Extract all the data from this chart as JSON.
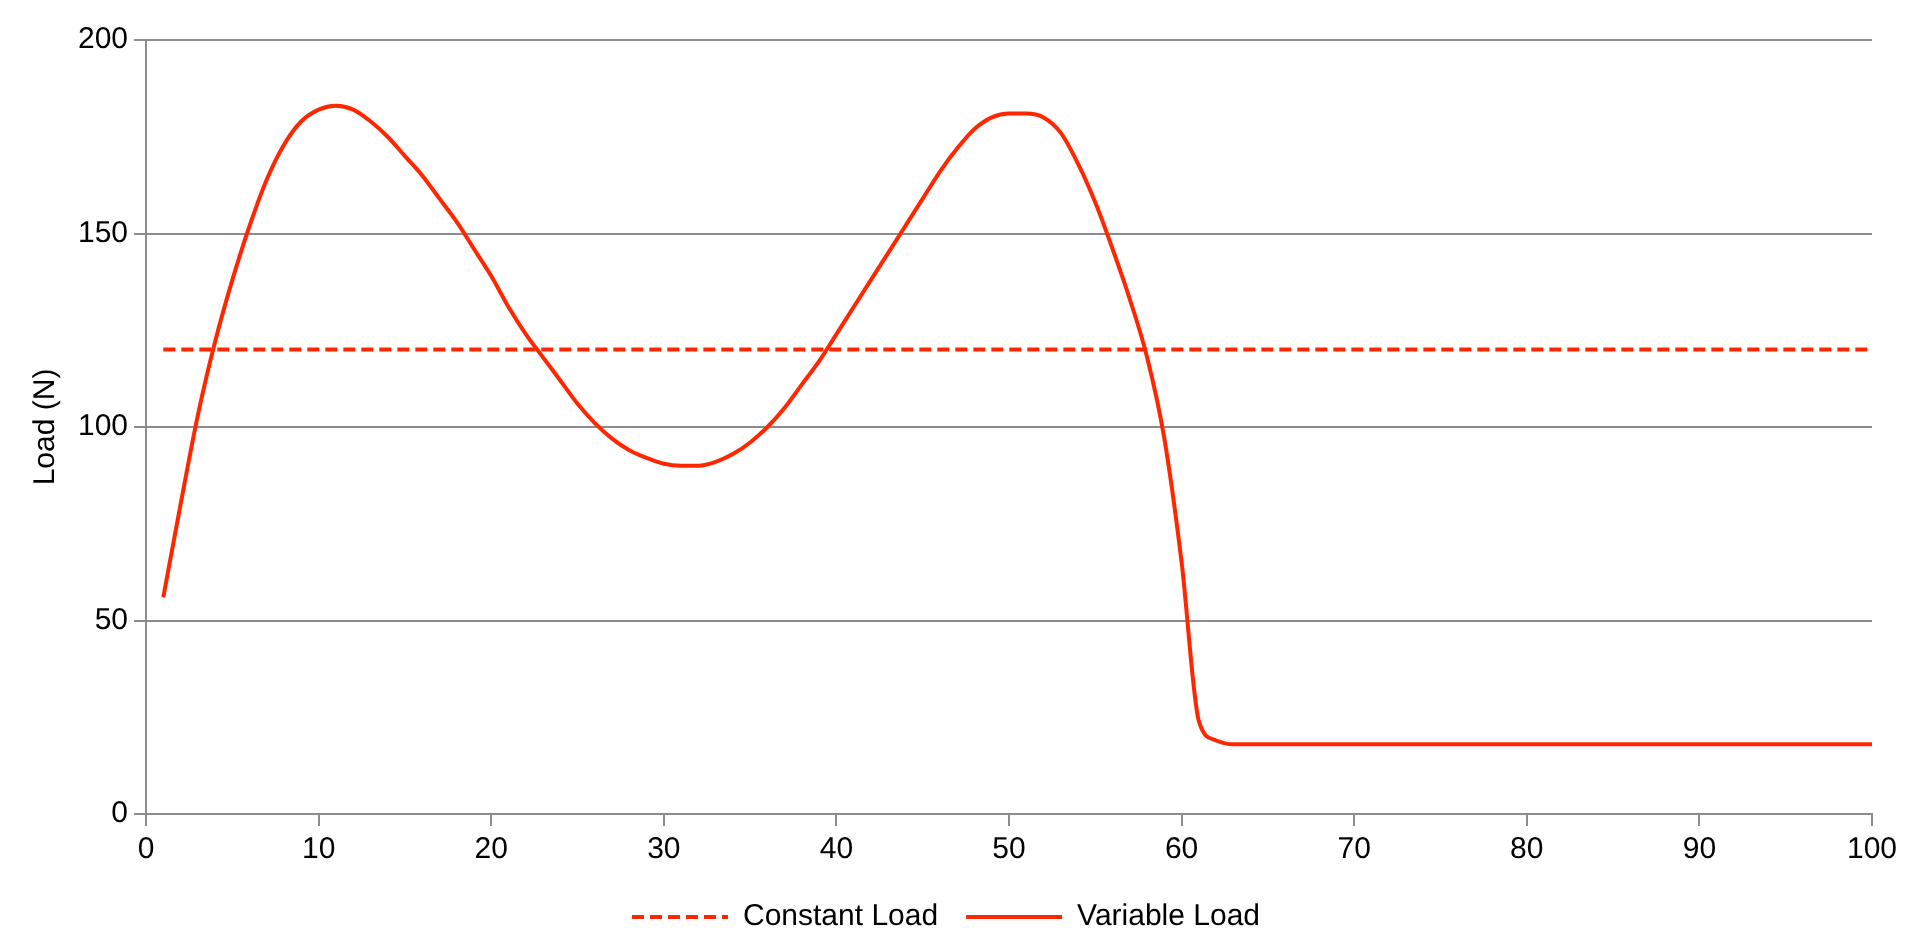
{
  "chart_data": {
    "type": "line",
    "ylabel": "Load (N)",
    "xlim": [
      0,
      100
    ],
    "xticks": [
      0,
      10,
      20,
      30,
      40,
      50,
      60,
      70,
      80,
      90,
      100
    ],
    "ylim": [
      0,
      200
    ],
    "yticks": [
      0,
      50,
      100,
      150,
      200
    ],
    "grid": "y",
    "legend": "bottom",
    "marker": "none",
    "series": [
      {
        "name": "Constant Load",
        "color": "#ff2600",
        "line_style": "dashed",
        "x": [
          1,
          100
        ],
        "values": [
          120,
          120
        ]
      },
      {
        "name": "Variable Load",
        "color": "#ff2600",
        "line_style": "solid",
        "x": [
          1,
          2,
          3,
          4,
          5,
          6,
          7,
          8,
          9,
          10,
          11,
          12,
          13,
          14,
          15,
          16,
          17,
          18,
          19,
          20,
          21,
          22,
          23,
          24,
          25,
          26,
          27,
          28,
          29,
          30,
          31,
          32,
          33,
          34,
          35,
          36,
          37,
          38,
          39,
          40,
          41,
          42,
          43,
          44,
          45,
          46,
          47,
          48,
          49,
          50,
          51,
          52,
          53,
          54,
          55,
          56,
          57,
          58,
          59,
          60,
          61,
          62,
          63,
          70,
          80,
          90,
          100
        ],
        "values": [
          56,
          80,
          103,
          122,
          138,
          152,
          164,
          173,
          179,
          182,
          183,
          182,
          179,
          175,
          170,
          165,
          159,
          153,
          146,
          139,
          131,
          124,
          118,
          112,
          106,
          101,
          97,
          94,
          92,
          90.5,
          90,
          90,
          91,
          93,
          96,
          100,
          105,
          111,
          117,
          124,
          131,
          138,
          145,
          152,
          159,
          166,
          172,
          177,
          180,
          181,
          181,
          180,
          176,
          168,
          158,
          146,
          133,
          118,
          97,
          65,
          24,
          19,
          18,
          18,
          18,
          18,
          18
        ]
      }
    ]
  }
}
